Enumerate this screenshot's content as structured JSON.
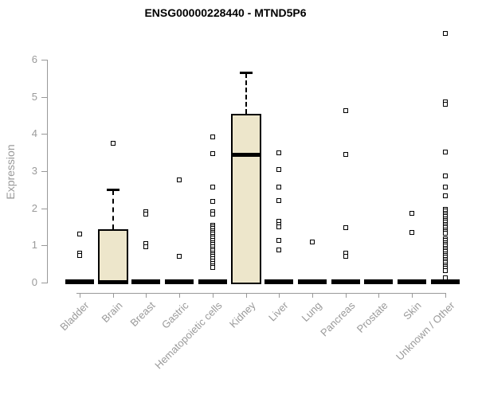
{
  "title": "ENSG00000228440 - MTND5P6",
  "chart_data": {
    "type": "boxplot",
    "title": "ENSG00000228440 - MTND5P6",
    "ylabel": "Expression",
    "xlabel": "",
    "yticks": [
      0,
      1,
      2,
      3,
      4,
      5,
      6
    ],
    "ylim": [
      0,
      6.9
    ],
    "grid": false,
    "legend": false,
    "categories": [
      "Bladder",
      "Brain",
      "Breast",
      "Gastric",
      "Hematopoietic cells",
      "Kidney",
      "Liver",
      "Lung",
      "Pancreas",
      "Prostate",
      "Skin",
      "Unknown / Other"
    ],
    "boxes": [
      {
        "category": "Bladder",
        "whisker_low": 0,
        "q1": 0,
        "median": 0,
        "q3": 0,
        "whisker_high": 0,
        "outliers": [
          1.31,
          0.8,
          0.73
        ]
      },
      {
        "category": "Brain",
        "whisker_low": 0,
        "q1": 0,
        "median": 0,
        "q3": 1.43,
        "whisker_high": 2.52,
        "outliers": [
          3.75
        ]
      },
      {
        "category": "Breast",
        "whisker_low": 0,
        "q1": 0,
        "median": 0,
        "q3": 0,
        "whisker_high": 0,
        "outliers": [
          1.91,
          1.84,
          1.05,
          0.96
        ]
      },
      {
        "category": "Gastric",
        "whisker_low": 0,
        "q1": 0,
        "median": 0,
        "q3": 0,
        "whisker_high": 0,
        "outliers": [
          2.76,
          0.71
        ]
      },
      {
        "category": "Hematopoietic cells",
        "whisker_low": 0,
        "q1": 0,
        "median": 0,
        "q3": 0,
        "whisker_high": 0,
        "outliers": [
          3.92,
          3.47,
          2.57,
          2.19,
          1.91,
          1.85,
          1.55,
          1.5,
          1.45,
          1.4,
          1.35,
          1.3,
          1.25,
          1.2,
          1.14,
          1.08,
          1.02,
          0.96,
          0.9,
          0.85,
          0.8,
          0.75,
          0.7,
          0.64,
          0.58,
          0.52,
          0.46,
          0.4
        ]
      },
      {
        "category": "Kidney",
        "whisker_low": 0,
        "q1": 0,
        "median": 3.42,
        "q3": 4.55,
        "whisker_high": 5.68,
        "outliers": []
      },
      {
        "category": "Liver",
        "whisker_low": 0,
        "q1": 0,
        "median": 0,
        "q3": 0,
        "whisker_high": 0,
        "outliers": [
          3.49,
          3.05,
          2.57,
          2.21,
          1.65,
          1.57,
          1.5,
          1.14,
          0.88
        ]
      },
      {
        "category": "Lung",
        "whisker_low": 0,
        "q1": 0,
        "median": 0,
        "q3": 0,
        "whisker_high": 0,
        "outliers": [
          1.09
        ]
      },
      {
        "category": "Pancreas",
        "whisker_low": 0,
        "q1": 0,
        "median": 0,
        "q3": 0,
        "whisker_high": 0,
        "outliers": [
          4.63,
          3.45,
          1.48,
          0.79,
          0.71
        ]
      },
      {
        "category": "Prostate",
        "whisker_low": 0,
        "q1": 0,
        "median": 0,
        "q3": 0,
        "whisker_high": 0,
        "outliers": []
      },
      {
        "category": "Skin",
        "whisker_low": 0,
        "q1": 0,
        "median": 0,
        "q3": 0,
        "whisker_high": 0,
        "outliers": [
          1.86,
          1.35
        ]
      },
      {
        "category": "Unknown / Other",
        "whisker_low": 0,
        "q1": 0,
        "median": 0,
        "q3": 0,
        "whisker_high": 0,
        "outliers": [
          6.71,
          4.87,
          4.81,
          3.52,
          2.87,
          2.57,
          2.34,
          1.97,
          1.92,
          1.87,
          1.82,
          1.77,
          1.72,
          1.67,
          1.62,
          1.57,
          1.52,
          1.47,
          1.42,
          1.37,
          1.32,
          1.18,
          1.13,
          1.08,
          1.03,
          0.98,
          0.93,
          0.88,
          0.83,
          0.78,
          0.73,
          0.68,
          0.63,
          0.58,
          0.53,
          0.48,
          0.43,
          0.38,
          0.33,
          0.13
        ]
      }
    ],
    "colors": {
      "box_fill": "#EDE6CB",
      "box_border": "#000000",
      "median": "#000000",
      "outlier_border": "#000000",
      "axis": "#999999",
      "tick_label": "#9A9A9A",
      "title": "#000000",
      "background": "#FFFFFF"
    }
  }
}
